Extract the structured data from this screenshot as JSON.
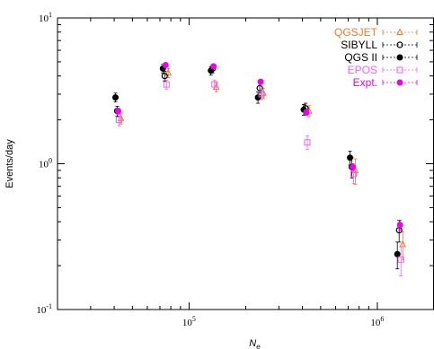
{
  "chart_data": {
    "type": "scatter",
    "xlabel": "N",
    "xlabel_subscript": "e",
    "ylabel": "Events/day",
    "x_scale": "log",
    "y_scale": "log",
    "xlim": [
      20000,
      2000000
    ],
    "ylim": [
      0.1,
      10
    ],
    "x_ticks": [
      {
        "value": 100000,
        "base": "10",
        "exp": "5"
      },
      {
        "value": 1000000,
        "base": "10",
        "exp": "6"
      }
    ],
    "y_ticks": [
      {
        "value": 0.1,
        "base": "10",
        "exp": "-1"
      },
      {
        "value": 1,
        "base": "10",
        "exp": "0"
      },
      {
        "value": 10,
        "base": "10",
        "exp": "1"
      }
    ],
    "grid": false,
    "legend_position": "top-right",
    "x": [
      42000,
      75000,
      135000,
      240000,
      420000,
      740000,
      1320000
    ],
    "series": [
      {
        "name": "QGSJET",
        "color": "#f07830",
        "marker": "open-triangle",
        "values": [
          2.05,
          4.2,
          3.35,
          3.05,
          2.3,
          0.9,
          0.28
        ],
        "err": [
          0.18,
          0.3,
          0.25,
          0.25,
          0.2,
          0.18,
          0.06
        ]
      },
      {
        "name": "SIBYLL",
        "color": "#000000",
        "marker": "open-circle",
        "values": [
          2.3,
          4.0,
          4.5,
          3.3,
          2.4,
          0.95,
          0.35
        ],
        "err": [
          0.18,
          0.3,
          0.3,
          0.25,
          0.2,
          0.15,
          0.06
        ]
      },
      {
        "name": "QGS II",
        "color": "#000000",
        "marker": "filled-circle",
        "values": [
          2.85,
          4.5,
          4.35,
          2.85,
          2.35,
          1.1,
          0.24
        ],
        "err": [
          0.2,
          0.3,
          0.3,
          0.25,
          0.2,
          0.12,
          0.05
        ]
      },
      {
        "name": "EPOS",
        "color": "#ee66ee",
        "marker": "open-square",
        "values": [
          2.0,
          3.5,
          3.5,
          3.0,
          1.4,
          0.85,
          0.22
        ],
        "err": [
          0.18,
          0.25,
          0.25,
          0.25,
          0.15,
          0.12,
          0.05
        ]
      },
      {
        "name": "Expt.",
        "color": "#ee00ee",
        "marker": "filled-circle",
        "values": [
          2.3,
          4.75,
          4.65,
          3.65,
          2.25,
          0.95,
          0.38
        ],
        "err": [
          0.1,
          0.15,
          0.15,
          0.12,
          0.1,
          0.05,
          0.03
        ]
      }
    ]
  }
}
